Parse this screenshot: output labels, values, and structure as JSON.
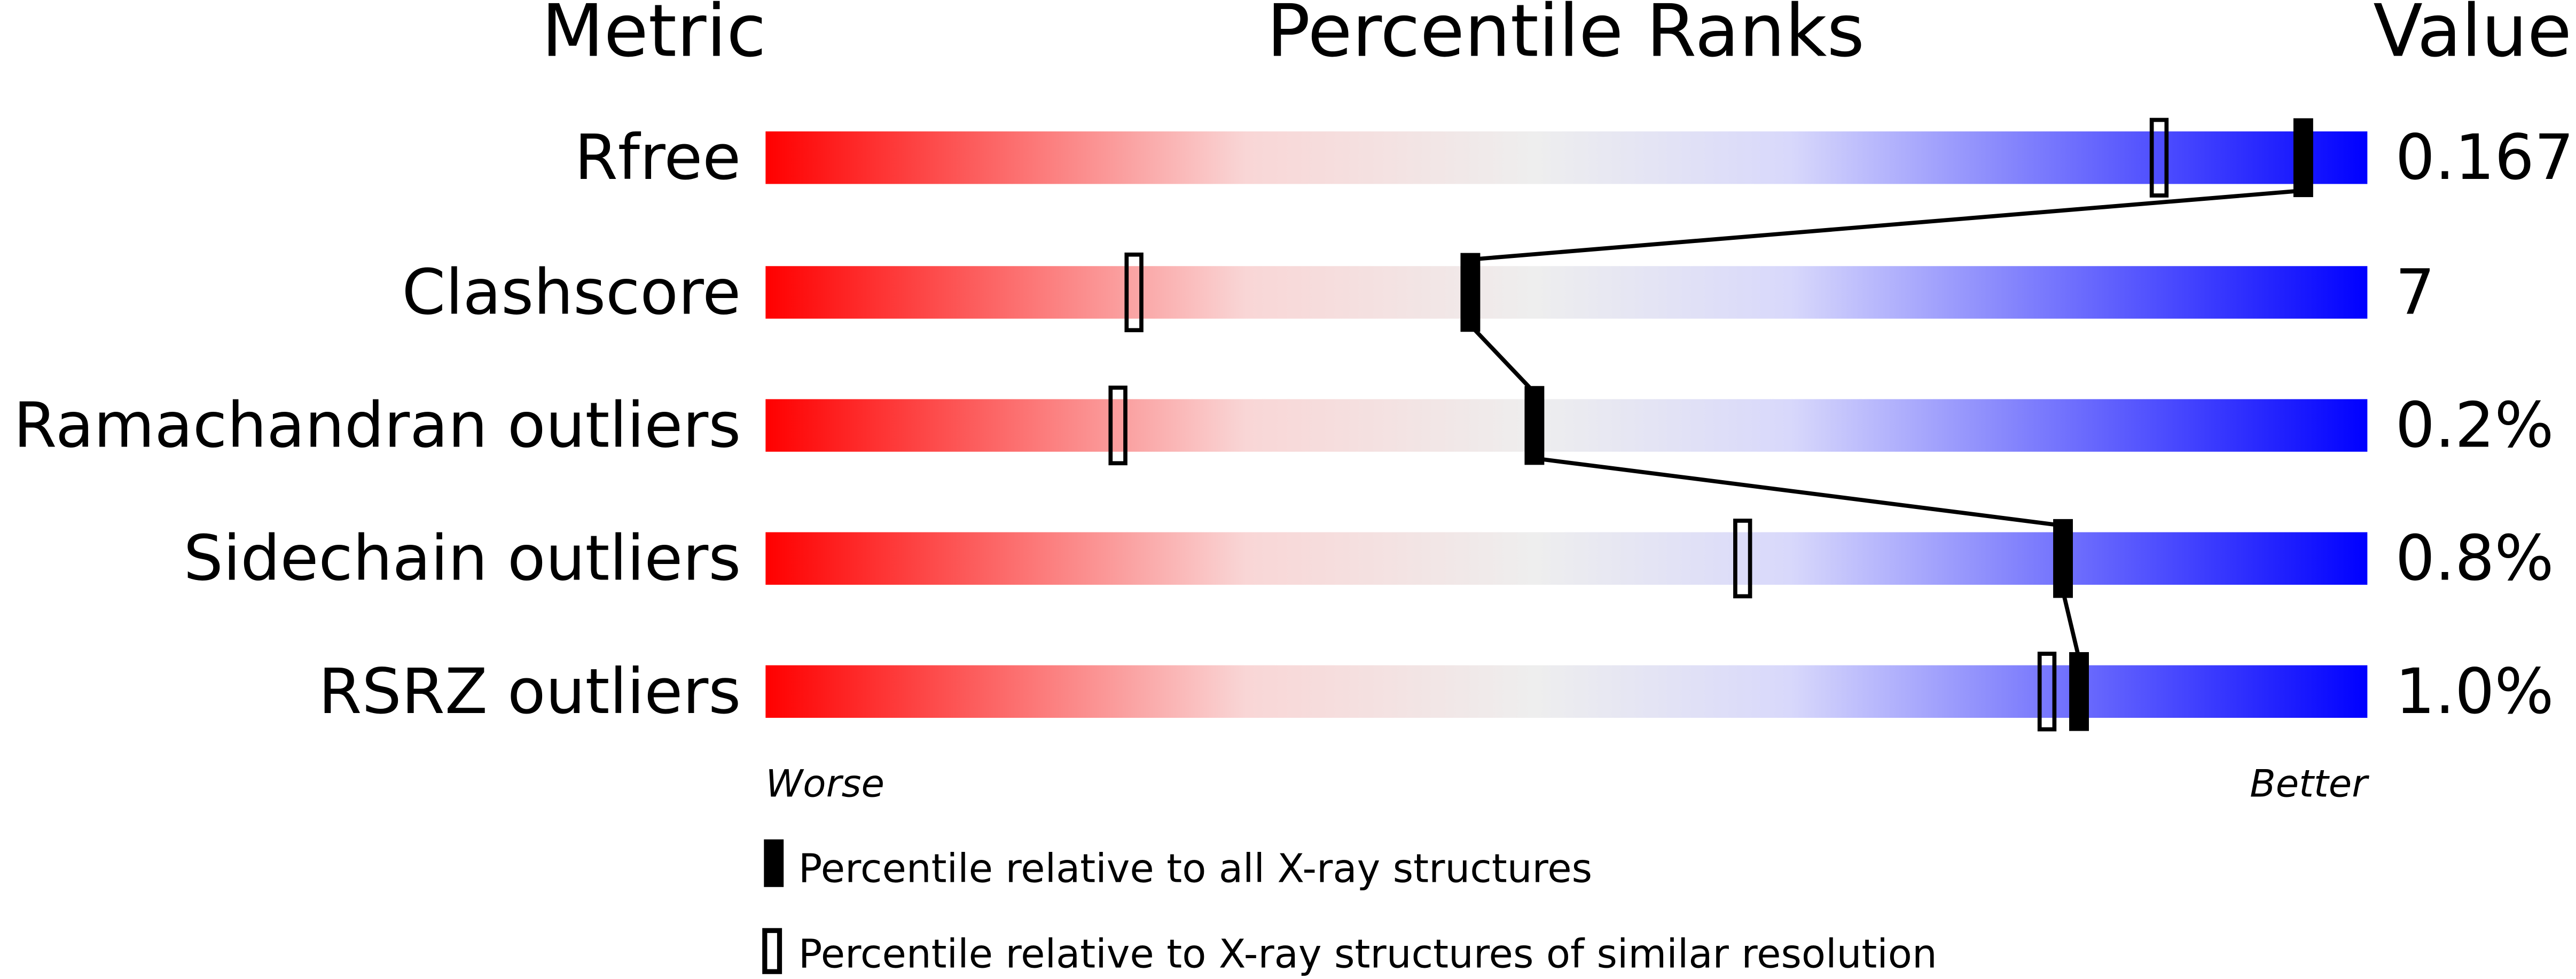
{
  "chart_data": {
    "type": "percentile-slider",
    "headers": {
      "metric": "Metric",
      "ranks": "Percentile Ranks",
      "value": "Value"
    },
    "x_range": [
      0,
      100
    ],
    "axis_labels": {
      "left": "Worse",
      "right": "Better"
    },
    "gradient_colors": [
      "#ff0000",
      "#f9d6d6",
      "#eeeeee",
      "#d8d8fb",
      "#0000ff"
    ],
    "rows": [
      {
        "metric": "Rfree",
        "value": "0.167",
        "percentile_all": 96,
        "percentile_similar": 87
      },
      {
        "metric": "Clashscore",
        "value": "7",
        "percentile_all": 44,
        "percentile_similar": 23
      },
      {
        "metric": "Ramachandran outliers",
        "value": "0.2%",
        "percentile_all": 48,
        "percentile_similar": 22
      },
      {
        "metric": "Sidechain outliers",
        "value": "0.8%",
        "percentile_all": 81,
        "percentile_similar": 61
      },
      {
        "metric": "RSRZ outliers",
        "value": "1.0%",
        "percentile_all": 82,
        "percentile_similar": 80
      }
    ],
    "legend": [
      {
        "marker": "filled",
        "label": "Percentile relative to all X-ray structures"
      },
      {
        "marker": "open",
        "label": "Percentile relative to X-ray structures of similar resolution"
      }
    ]
  }
}
